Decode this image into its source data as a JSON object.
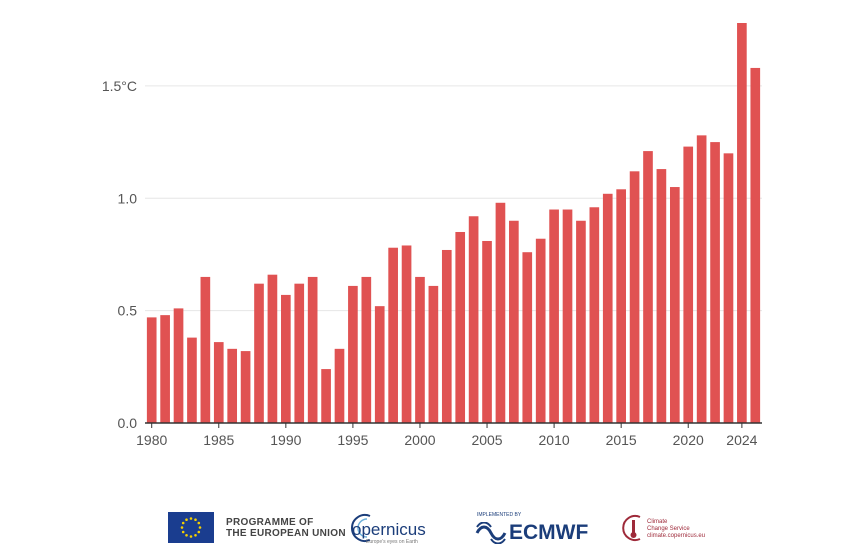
{
  "chart_data": {
    "type": "bar",
    "title": "",
    "xlabel": "",
    "ylabel": "",
    "x": [
      1980,
      1981,
      1982,
      1983,
      1984,
      1985,
      1986,
      1987,
      1988,
      1989,
      1990,
      1991,
      1992,
      1993,
      1994,
      1995,
      1996,
      1997,
      1998,
      1999,
      2000,
      2001,
      2002,
      2003,
      2004,
      2005,
      2006,
      2007,
      2008,
      2009,
      2010,
      2011,
      2012,
      2013,
      2014,
      2015,
      2016,
      2017,
      2018,
      2019,
      2020,
      2021,
      2022,
      2023,
      2024,
      2025
    ],
    "values": [
      0.47,
      0.48,
      0.51,
      0.38,
      0.65,
      0.36,
      0.33,
      0.32,
      0.62,
      0.66,
      0.57,
      0.62,
      0.65,
      0.24,
      0.33,
      0.61,
      0.65,
      0.52,
      0.78,
      0.79,
      0.65,
      0.61,
      0.77,
      0.85,
      0.92,
      0.81,
      0.98,
      0.9,
      0.76,
      0.82,
      0.95,
      0.95,
      0.9,
      0.96,
      1.02,
      1.04,
      1.12,
      1.21,
      1.13,
      1.05,
      1.23,
      1.28,
      1.25,
      1.2,
      1.78,
      1.58
    ],
    "ylim": [
      0,
      1.78
    ],
    "yticks": [
      "0.0",
      "0.5",
      "1.0",
      "1.5°C"
    ],
    "ytick_values": [
      0,
      0.5,
      1.0,
      1.5
    ],
    "xticks": [
      "1980",
      "1985",
      "1990",
      "1995",
      "2000",
      "2005",
      "2010",
      "2015",
      "2020",
      "2024"
    ],
    "xtick_values": [
      1980,
      1985,
      1990,
      1995,
      2000,
      2005,
      2010,
      2015,
      2020,
      2024
    ],
    "grid": true,
    "colors": {
      "bar": "#e05252",
      "grid": "#e6e6e6",
      "axis": "#333333"
    }
  },
  "footer": {
    "eu_line1": "PROGRAMME OF",
    "eu_line2": "THE EUROPEAN UNION",
    "copernicus_name": "opernicus",
    "copernicus_tag": "Europe's eyes on Earth",
    "ecmwf_small": "IMPLEMENTED BY",
    "ecmwf_name": "ECMWF",
    "c3s_line1": "Climate",
    "c3s_line2": "Change Service",
    "c3s_line3": "climate.copernicus.eu"
  }
}
